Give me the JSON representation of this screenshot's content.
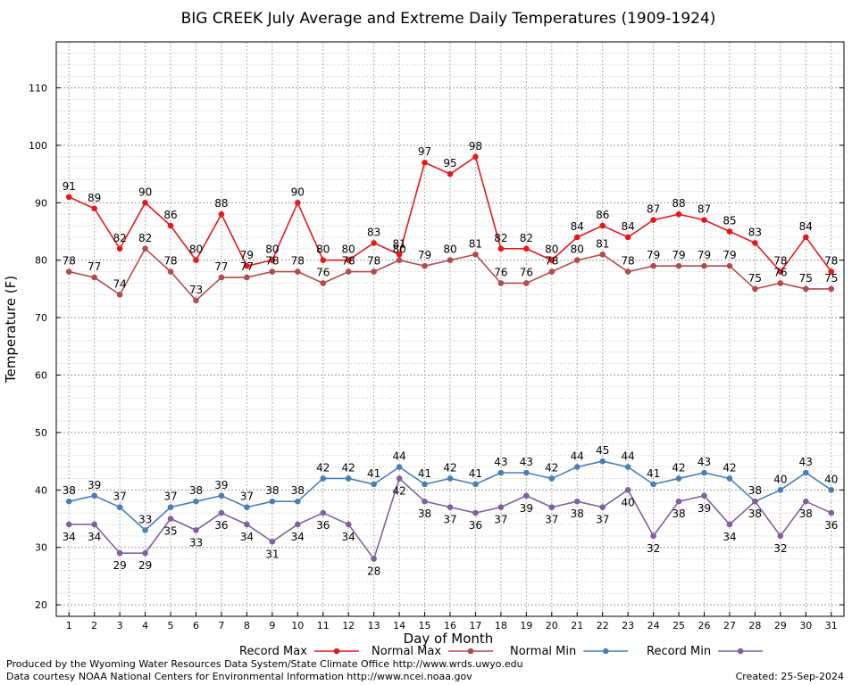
{
  "chart_data": {
    "type": "line",
    "title": "BIG CREEK July Average and Extreme Daily Temperatures (1909-1924)",
    "xlabel": "Day of Month",
    "ylabel": "Temperature (F)",
    "x": [
      1,
      2,
      3,
      4,
      5,
      6,
      7,
      8,
      9,
      10,
      11,
      12,
      13,
      14,
      15,
      16,
      17,
      18,
      19,
      20,
      21,
      22,
      23,
      24,
      25,
      26,
      27,
      28,
      29,
      30,
      31
    ],
    "xlim": [
      0.5,
      31.5
    ],
    "ylim": [
      18,
      118
    ],
    "yticks": [
      20,
      30,
      40,
      50,
      60,
      70,
      80,
      90,
      100,
      110
    ],
    "grid": true,
    "legend_position": "bottom",
    "series": [
      {
        "name": "Record Max",
        "color": "#e31a1c",
        "label_offset": "above",
        "values": [
          91,
          89,
          82,
          90,
          86,
          80,
          88,
          79,
          80,
          90,
          80,
          80,
          83,
          81,
          97,
          95,
          98,
          82,
          82,
          80,
          84,
          86,
          84,
          87,
          88,
          87,
          85,
          83,
          78,
          84,
          78
        ]
      },
      {
        "name": "Normal Max",
        "color": "#b24b4b",
        "label_offset": "above",
        "values": [
          78,
          77,
          74,
          82,
          78,
          73,
          77,
          77,
          78,
          78,
          76,
          78,
          78,
          80,
          79,
          80,
          81,
          76,
          76,
          78,
          80,
          81,
          78,
          79,
          79,
          79,
          79,
          75,
          76,
          75,
          75
        ]
      },
      {
        "name": "Normal Min",
        "color": "#4a7fb5",
        "label_offset": "above",
        "values": [
          38,
          39,
          37,
          33,
          37,
          38,
          39,
          37,
          38,
          38,
          42,
          42,
          41,
          44,
          41,
          42,
          41,
          43,
          43,
          42,
          44,
          45,
          44,
          41,
          42,
          43,
          42,
          38,
          40,
          43,
          40
        ]
      },
      {
        "name": "Record Min",
        "color": "#8060a0",
        "label_offset": "below",
        "values": [
          34,
          34,
          29,
          29,
          35,
          33,
          36,
          34,
          31,
          34,
          36,
          34,
          28,
          42,
          38,
          37,
          36,
          37,
          39,
          37,
          38,
          37,
          40,
          32,
          38,
          39,
          34,
          38,
          32,
          38,
          36
        ]
      }
    ]
  },
  "footer": {
    "produced_by": "Produced by the Wyoming Water Resources Data System/State Climate Office http://www.wrds.uwyo.edu",
    "courtesy": "Data courtesy NOAA National Centers for Environmental Information http://www.ncei.noaa.gov",
    "created": "Created:  25-Sep-2024"
  }
}
